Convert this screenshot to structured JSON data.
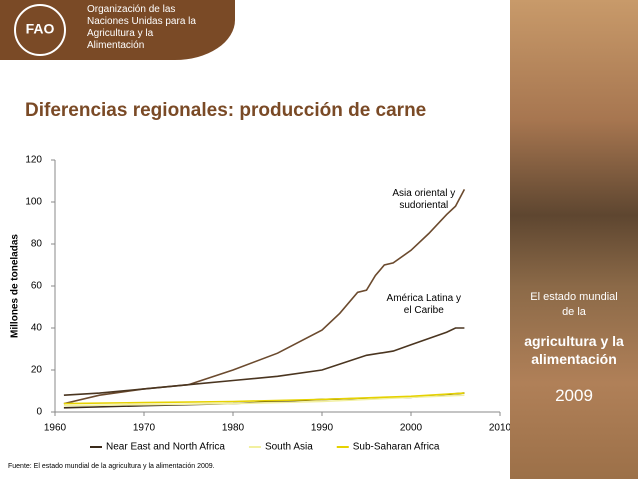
{
  "header": {
    "org": "Organización de las Naciones Unidas para la Agricultura y la Alimentación"
  },
  "sidebar": {
    "line1": "El estado mundial de la",
    "line2": "agricultura y la alimentación",
    "year": "2009"
  },
  "footer": {
    "source": "Fuente: El estado mundial de la agricultura y la alimentación 2009."
  },
  "chart_data": {
    "type": "line",
    "title": "Diferencias regionales: producción de carne",
    "y_label": "Millones de toneladas",
    "xlim": [
      1960,
      2010
    ],
    "xticks": [
      1960,
      1970,
      1980,
      1990,
      2000,
      2010
    ],
    "ylim": [
      0,
      120
    ],
    "yticks": [
      0,
      20,
      40,
      60,
      80,
      100,
      120
    ],
    "grid": false,
    "series": [
      {
        "label": [
          "Asia oriental y",
          "sudoriental"
        ],
        "color": "#6b4a2e",
        "x": [
          1961,
          1965,
          1970,
          1975,
          1980,
          1985,
          1990,
          1992,
          1994,
          1995,
          1996,
          1997,
          1998,
          2000,
          2002,
          2004,
          2005,
          2006
        ],
        "values": [
          4,
          8,
          11,
          13,
          20,
          28,
          39,
          47,
          57,
          58,
          65,
          70,
          71,
          77,
          85,
          94,
          98,
          106
        ]
      },
      {
        "label": [
          "América Latina y",
          "el Caribe"
        ],
        "color": "#4a3520",
        "x": [
          1961,
          1965,
          1970,
          1975,
          1980,
          1985,
          1990,
          1995,
          1998,
          2000,
          2002,
          2004,
          2005,
          2006
        ],
        "values": [
          8,
          9,
          11,
          13,
          15,
          17,
          20,
          27,
          29,
          32,
          35,
          38,
          40,
          40
        ]
      },
      {
        "name": "Near East and North Africa",
        "color": "#3a2a1a",
        "x": [
          1961,
          1970,
          1980,
          1990,
          2000,
          2006
        ],
        "values": [
          2,
          3,
          4,
          6,
          7,
          9
        ]
      },
      {
        "name": "South Asia",
        "color": "#f2f0a0",
        "x": [
          1961,
          1970,
          1980,
          1990,
          2000,
          2006
        ],
        "values": [
          3,
          3.5,
          4,
          5,
          7,
          8
        ]
      },
      {
        "name": "Sub-Saharan Africa",
        "color": "#e6d200",
        "x": [
          1961,
          1970,
          1980,
          1990,
          2000,
          2006
        ],
        "values": [
          4,
          4.5,
          5,
          6,
          7.5,
          9
        ]
      }
    ]
  }
}
